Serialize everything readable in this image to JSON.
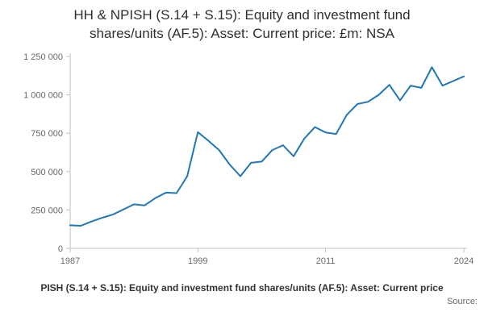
{
  "title": "HH & NPISH (S.14 + S.15): Equity and investment fund shares/units (AF.5): Asset: Current price: £m: NSA",
  "chart_data": {
    "type": "line",
    "title": "HH & NPISH (S.14 + S.15): Equity and investment fund shares/units (AF.5): Asset: Current price: £m: NSA",
    "xlabel": "",
    "ylabel": "",
    "ylim": [
      0,
      1250000
    ],
    "y_ticks": [
      0,
      250000,
      500000,
      750000,
      1000000,
      1250000
    ],
    "y_tick_labels": [
      "0",
      "250 000",
      "500 000",
      "750 000",
      "1 000 000",
      "1 250 000"
    ],
    "x_ticks": [
      1987,
      1999,
      2011,
      2024
    ],
    "grid": false,
    "legend": "none",
    "line_color": "#1f77b4",
    "axis_color": "#c0c0c0",
    "tick_label_color": "#666666",
    "x": [
      1987,
      1988,
      1989,
      1990,
      1991,
      1992,
      1993,
      1994,
      1995,
      1996,
      1997,
      1998,
      1999,
      2000,
      2001,
      2002,
      2003,
      2004,
      2005,
      2006,
      2007,
      2008,
      2009,
      2010,
      2011,
      2012,
      2013,
      2014,
      2015,
      2016,
      2017,
      2018,
      2019,
      2020,
      2021,
      2022,
      2023,
      2024
    ],
    "series": [
      {
        "name": "HH & NPISH (S.14 + S.15): Equity and investment fund shares/units (AF.5): Asset: Current price: £m: NSA",
        "values": [
          150000,
          147000,
          175000,
          199000,
          220000,
          253000,
          287000,
          280000,
          327000,
          363000,
          360000,
          470000,
          757000,
          700000,
          640000,
          545000,
          470000,
          557000,
          565000,
          640000,
          672000,
          600000,
          715000,
          790000,
          755000,
          745000,
          870000,
          940000,
          955000,
          1000000,
          1065000,
          963000,
          1060000,
          1045000,
          1180000,
          1060000,
          1090000,
          1120000
        ]
      }
    ]
  },
  "footer": {
    "caption": "PISH (S.14 + S.15): Equity and investment fund shares/units (AF.5): Asset: Current price",
    "source_label": "Source:"
  }
}
